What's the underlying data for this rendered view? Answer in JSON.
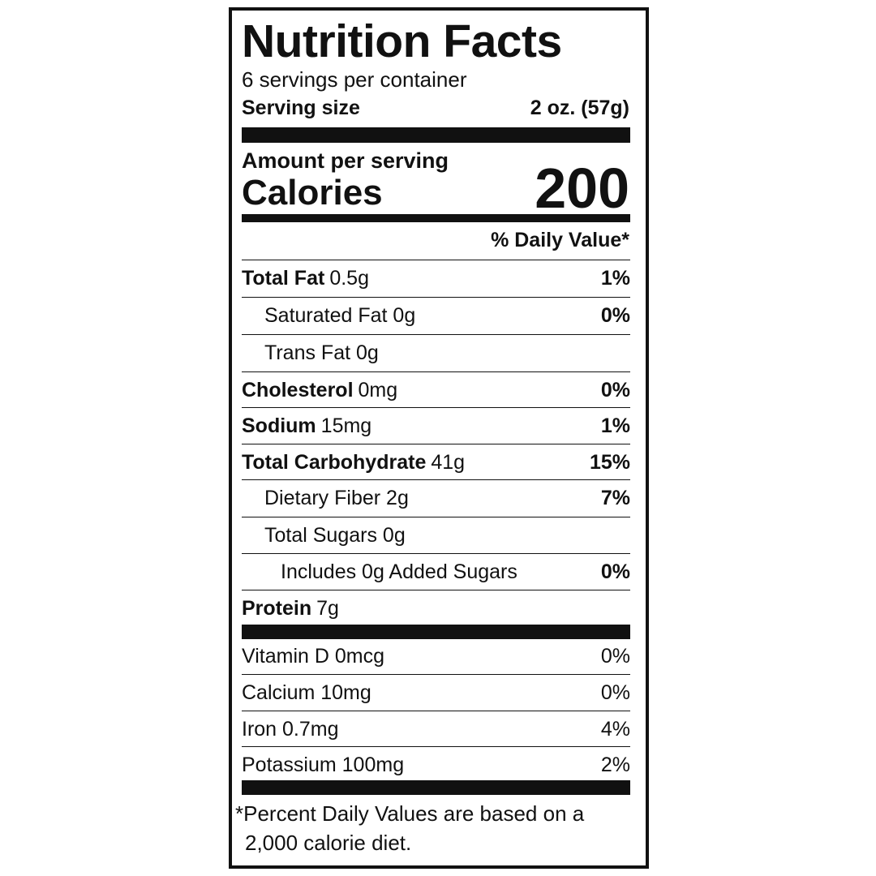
{
  "title": "Nutrition Facts",
  "servings": "6 servings per container",
  "serving_size": {
    "label": "Serving size",
    "value": "2 oz. (57g)"
  },
  "calories": {
    "heading": "Amount per serving",
    "label": "Calories",
    "value": "200"
  },
  "dv_header": "% Daily Value*",
  "nutrients": [
    {
      "name": "Total Fat",
      "amount": "0.5g",
      "dv": "1%"
    },
    {
      "name": "Saturated Fat 0g",
      "dv": "0%"
    },
    {
      "name": "Trans Fat 0g"
    },
    {
      "name": "Cholesterol",
      "amount": "0mg",
      "dv": "0%"
    },
    {
      "name": "Sodium",
      "amount": "15mg",
      "dv": "1%"
    },
    {
      "name": "Total Carbohydrate",
      "amount": "41g",
      "dv": "15%"
    },
    {
      "name": "Dietary Fiber 2g",
      "dv": "7%"
    },
    {
      "name": "Total Sugars 0g"
    },
    {
      "name": "Includes 0g Added Sugars",
      "dv": "0%"
    },
    {
      "name": "Protein",
      "amount": "7g"
    }
  ],
  "vitamins": [
    {
      "label": "Vitamin D 0mcg",
      "dv": "0%"
    },
    {
      "label": "Calcium 10mg",
      "dv": "0%"
    },
    {
      "label": "Iron 0.7mg",
      "dv": "4%"
    },
    {
      "label": "Potassium 100mg",
      "dv": "2%"
    }
  ],
  "footnote": [
    "*Percent Daily Values are based on a",
    "2,000 calorie diet."
  ]
}
